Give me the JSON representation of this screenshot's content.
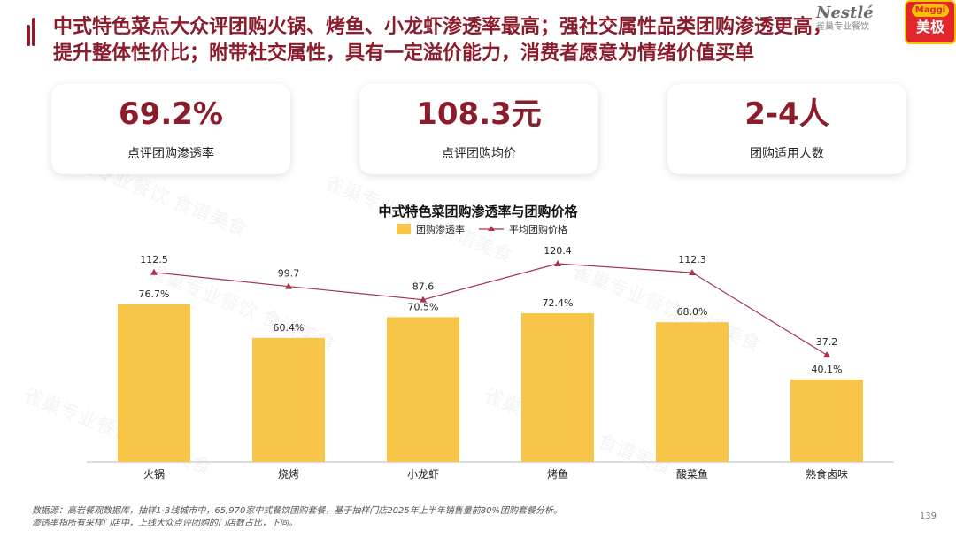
{
  "header": {
    "title_line1": "中式特色菜点大众评团购火锅、烤鱼、小龙虾渗透率最高；强社交属性品类团购渗透更高，",
    "title_line2": "提升整体性价比；附带社交属性，具有一定溢价能力，消费者愿意为情绪价值买单",
    "brand_nestle": "Nestlé",
    "brand_nestle_sub": "雀巢专业餐饮",
    "brand_maggi": "Maggi",
    "brand_maggi_cn": "美极"
  },
  "kpis": [
    {
      "value": "69.2%",
      "label": "点评团购渗透率"
    },
    {
      "value": "108.3元",
      "label": "点评团购均价"
    },
    {
      "value": "2-4人",
      "label": "团购适用人数"
    }
  ],
  "watermark_text": "雀巢专业餐饮 食谱美食",
  "chart_data": {
    "type": "bar",
    "title": "中式特色菜团购渗透率与团购价格",
    "categories": [
      "火锅",
      "烧烤",
      "小龙虾",
      "烤鱼",
      "酸菜鱼",
      "熟食卤味"
    ],
    "series": [
      {
        "name": "团购渗透率",
        "type": "bar",
        "values": [
          76.7,
          60.4,
          70.5,
          72.4,
          68.0,
          40.1
        ],
        "labels": [
          "76.7%",
          "60.4%",
          "70.5%",
          "72.4%",
          "68.0%",
          "40.1%"
        ],
        "color": "#f7c54a"
      },
      {
        "name": "平均团购价格",
        "type": "line",
        "values": [
          112.5,
          99.7,
          87.6,
          120.4,
          112.3,
          37.2
        ],
        "labels": [
          "112.5",
          "99.7",
          "87.6",
          "120.4",
          "112.3",
          "37.2"
        ],
        "color": "#a8324a"
      }
    ],
    "legend": "top",
    "grid": false
  },
  "footnote": {
    "line1": "数据源：高岩餐观数据库，抽样1-3线城市中，65,970家中式餐饮团购套餐，基于抽样门店2025年上半年销售量前80%团购套餐分析。",
    "line2": "渗透率指所有采样门店中，上线大众点评团购的门店数占比，下同。"
  },
  "page_number": "139",
  "colors": {
    "accent": "#8b1c2c",
    "bar": "#f7c54a",
    "line": "#a8324a"
  }
}
